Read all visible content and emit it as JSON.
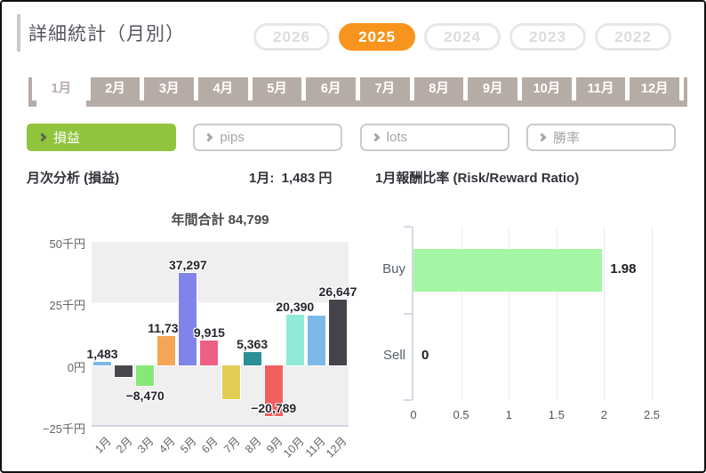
{
  "page": {
    "title": "詳細統計（月別）"
  },
  "years": {
    "items": [
      {
        "label": "2026",
        "active": false
      },
      {
        "label": "2025",
        "active": true
      },
      {
        "label": "2024",
        "active": false
      },
      {
        "label": "2023",
        "active": false
      },
      {
        "label": "2022",
        "active": false
      }
    ]
  },
  "month_tabs": {
    "items": [
      {
        "label": "1月",
        "active": true
      },
      {
        "label": "2月",
        "active": false
      },
      {
        "label": "3月",
        "active": false
      },
      {
        "label": "4月",
        "active": false
      },
      {
        "label": "5月",
        "active": false
      },
      {
        "label": "6月",
        "active": false
      },
      {
        "label": "7月",
        "active": false
      },
      {
        "label": "8月",
        "active": false
      },
      {
        "label": "9月",
        "active": false
      },
      {
        "label": "10月",
        "active": false
      },
      {
        "label": "11月",
        "active": false
      },
      {
        "label": "12月",
        "active": false
      }
    ]
  },
  "filters": {
    "items": [
      {
        "label": "損益",
        "active": true
      },
      {
        "label": "pips",
        "active": false
      },
      {
        "label": "lots",
        "active": false
      },
      {
        "label": "勝率",
        "active": false
      }
    ]
  },
  "summary": {
    "analysis_label": "月次分析 (損益)",
    "month_value": "1月:  1,483 円",
    "ratio_label": "1月報酬比率 (Risk/Reward Ratio)"
  },
  "chart_data": [
    {
      "type": "bar",
      "title": "年間合計 84,799",
      "annual_total": 84799,
      "unit": "円",
      "categories": [
        "1月",
        "2月",
        "3月",
        "4月",
        "5月",
        "6月",
        "7月",
        "8月",
        "9月",
        "10月",
        "11月",
        "12月"
      ],
      "values": [
        1483,
        -4900,
        -8470,
        11739,
        37297,
        9915,
        -13950,
        5363,
        -20789,
        20390,
        20074,
        26647
      ],
      "labels": [
        "1,483",
        null,
        "−8,470",
        "11,739",
        "37,297",
        "9,915",
        null,
        "5,363",
        "−20,789",
        "20,390",
        null,
        "26,647"
      ],
      "bar_colors": [
        "#7ab8ec",
        "#47474d",
        "#86e876",
        "#f4a555",
        "#8084e8",
        "#ee5f86",
        "#e2cd55",
        "#2b8f96",
        "#f25f5f",
        "#90ead8",
        "#7db9e8",
        "#44444a"
      ],
      "ytick_labels": [
        "50千円",
        "25千円",
        "0円",
        "−25千円"
      ],
      "ylim": [
        -25000,
        50000
      ],
      "grid": "alternating-bands"
    },
    {
      "type": "horizontal_bar",
      "title": "1月報酬比率 (Risk/Reward Ratio)",
      "categories": [
        "Buy",
        "Sell"
      ],
      "values": [
        1.98,
        0
      ],
      "labels": [
        "1.98",
        "0"
      ],
      "xticks": [
        "0",
        "0.5",
        "1",
        "1.5",
        "2",
        "2.5"
      ],
      "xlim": [
        0,
        2.5
      ],
      "bar_color": "#a4f6a4"
    }
  ],
  "colors": {
    "accent_orange": "#f7941e",
    "accent_green": "#8fc43c",
    "tab_taupe": "#b6aca7",
    "band_gray": "#efefef",
    "buy_bar_green": "#a4f6a4"
  }
}
